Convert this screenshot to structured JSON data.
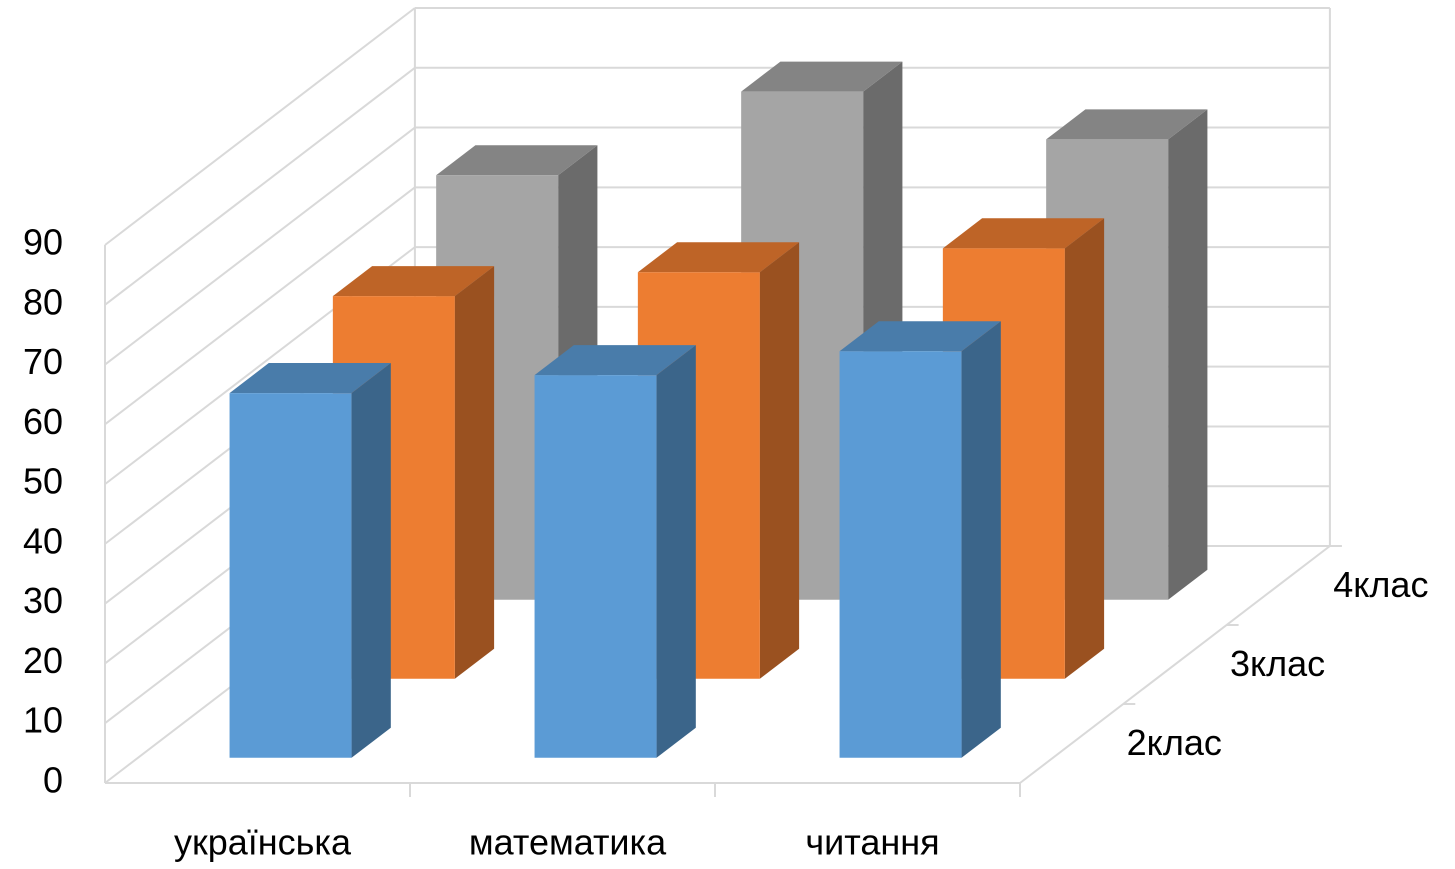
{
  "chart_data": {
    "type": "bar3d",
    "categories": [
      "українська",
      "математика",
      "читання"
    ],
    "series": [
      {
        "name": "2клас",
        "color": "#5b9bd5",
        "values": [
          61,
          64,
          68
        ]
      },
      {
        "name": "3клас",
        "color": "#ed7d31",
        "values": [
          64,
          68,
          72
        ]
      },
      {
        "name": "4клас",
        "color": "#a5a5a5",
        "values": [
          71,
          85,
          77
        ]
      }
    ],
    "ylim": [
      0,
      90
    ],
    "yticks": [
      0,
      10,
      20,
      30,
      40,
      50,
      60,
      70,
      80,
      90
    ],
    "grid": true
  }
}
